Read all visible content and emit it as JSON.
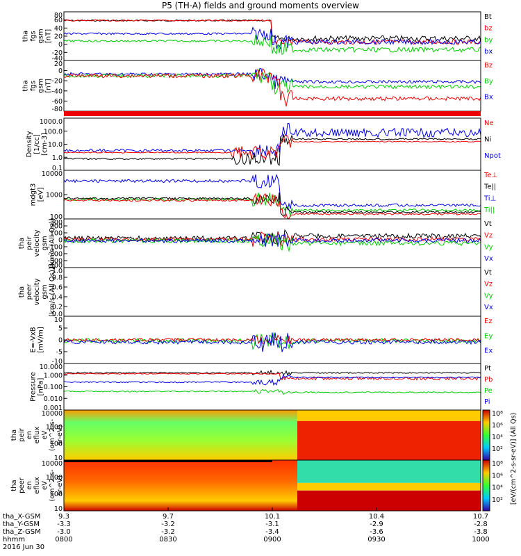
{
  "title": "P5 (TH-A) fields and ground moments overview",
  "colors": {
    "black": "#000000",
    "red": "#ee0000",
    "green": "#00cc00",
    "blue": "#0000ee"
  },
  "chart_data": {
    "type": "line",
    "time_axis": {
      "ticks": [
        "0800",
        "0830",
        "0900",
        "0930",
        "1000"
      ],
      "date": "2016 Jun 30"
    },
    "ephemeris": [
      {
        "label": "tha_X-GSM",
        "values": [
          "9.3",
          "9.7",
          "10.1",
          "10.4",
          "10.7"
        ]
      },
      {
        "label": "tha_Y-GSM",
        "values": [
          "-3.3",
          "-3.2",
          "-3.1",
          "-2.9",
          "-2.8"
        ]
      },
      {
        "label": "tha_Z-GSM",
        "values": [
          "-3.0",
          "-3.2",
          "-3.4",
          "-3.6",
          "-3.8"
        ]
      },
      {
        "label": "hhmm",
        "values": [
          "0800",
          "0830",
          "0900",
          "0930",
          "1000"
        ]
      }
    ],
    "panels": [
      {
        "id": "fgs-dsl",
        "ylabel": [
          "tha",
          "fgs",
          "gsm",
          "[nT]"
        ],
        "ticks": [
          "80",
          "60",
          "40",
          "20",
          "0",
          "-20",
          "-40"
        ],
        "legend": [
          {
            "name": "Bt",
            "color": "black"
          },
          {
            "name": "bz",
            "color": "red"
          },
          {
            "name": "by",
            "color": "green"
          },
          {
            "name": "bx",
            "color": "blue"
          }
        ]
      },
      {
        "id": "fgs-gsm",
        "ylabel": [
          "tha",
          "fgs",
          "gsm",
          "[nT]"
        ],
        "ticks": [
          "20",
          "0",
          "-20",
          "-40",
          "-60",
          "-80"
        ],
        "legend": [
          {
            "name": "Bz",
            "color": "red"
          },
          {
            "name": "By",
            "color": "green"
          },
          {
            "name": "Bx",
            "color": "blue"
          }
        ]
      },
      {
        "id": "density",
        "ylabel": [
          "Density",
          "[1/cc]",
          "[cm-3]"
        ],
        "ticks": [
          "1000.0",
          "100.0",
          "10.0",
          "1.0",
          "0.1"
        ],
        "legend": [
          {
            "name": "Ne",
            "color": "red"
          },
          {
            "name": "Ni",
            "color": "black"
          },
          {
            "name": "Npot",
            "color": "blue"
          }
        ]
      },
      {
        "id": "temperature",
        "ylabel": [
          "mdgt3",
          "[eV]"
        ],
        "ticks": [
          "10000",
          "1000",
          "100"
        ],
        "legend": [
          {
            "name": "Te⊥",
            "color": "red"
          },
          {
            "name": "Te||",
            "color": "black"
          },
          {
            "name": "Ti⊥",
            "color": "blue"
          },
          {
            "name": "Ti||",
            "color": "green"
          }
        ]
      },
      {
        "id": "peir-velocity",
        "ylabel": [
          "tha",
          "peir",
          "velocity",
          "gsm",
          "[km/s (All Qs)]"
        ],
        "ticks": [
          "300",
          "200",
          "100",
          "0",
          "-100",
          "-200",
          "-300",
          "-400"
        ],
        "legend": [
          {
            "name": "Vt",
            "color": "black"
          },
          {
            "name": "Vz",
            "color": "red"
          },
          {
            "name": "Vy",
            "color": "green"
          },
          {
            "name": "Vx",
            "color": "blue"
          }
        ]
      },
      {
        "id": "peer-velocity",
        "ylabel": [
          "tha",
          "peer",
          "velocity",
          "gsm",
          "[km/s (All Qs)]"
        ],
        "ticks": [
          "1.0",
          "0.8",
          "0.6",
          "0.4",
          "0.2",
          "0.0"
        ],
        "legend": [
          {
            "name": "Vt",
            "color": "black"
          },
          {
            "name": "Vz",
            "color": "red"
          },
          {
            "name": "Vy",
            "color": "green"
          },
          {
            "name": "Vx",
            "color": "blue"
          }
        ]
      },
      {
        "id": "efield",
        "ylabel": [
          "E=-VxB",
          "[mV/m]"
        ],
        "ticks": [
          "10",
          "5",
          "0",
          "-5",
          "-10"
        ],
        "legend": [
          {
            "name": "Ez",
            "color": "red"
          },
          {
            "name": "Ey",
            "color": "green"
          },
          {
            "name": "Ex",
            "color": "blue"
          }
        ]
      },
      {
        "id": "pressure",
        "ylabel": [
          "Pressure",
          "[nPa]"
        ],
        "ticks": [
          "10.000",
          "1.000",
          "0.100",
          "0.010",
          "0.001"
        ],
        "legend": [
          {
            "name": "Pt",
            "color": "black"
          },
          {
            "name": "Pb",
            "color": "red"
          },
          {
            "name": "Pe",
            "color": "green"
          },
          {
            "name": "Pi",
            "color": "blue"
          }
        ]
      },
      {
        "id": "peir-spec",
        "ylabel": [
          "tha",
          "peir",
          "en",
          "eflux",
          "eV",
          "(cm^2-s-",
          "sr-eV)"
        ],
        "ticks": [
          "10000",
          "1000",
          "100",
          "10"
        ]
      },
      {
        "id": "peer-spec",
        "ylabel": [
          "tha",
          "peer",
          "en",
          "eflux",
          "eV",
          "(cm^2-s-",
          "sr-eV)"
        ],
        "ticks": [
          "10000",
          "1000",
          "100",
          "10"
        ]
      }
    ],
    "colorbar": {
      "label": "[eV/(cm^2-s-sr-eV)] (All Qs)",
      "ticks_top": [
        "10⁸",
        "10⁶",
        "10⁴",
        "10²"
      ],
      "ticks_bottom": [
        "10⁸",
        "10⁶",
        "10⁴",
        "10²"
      ]
    }
  }
}
